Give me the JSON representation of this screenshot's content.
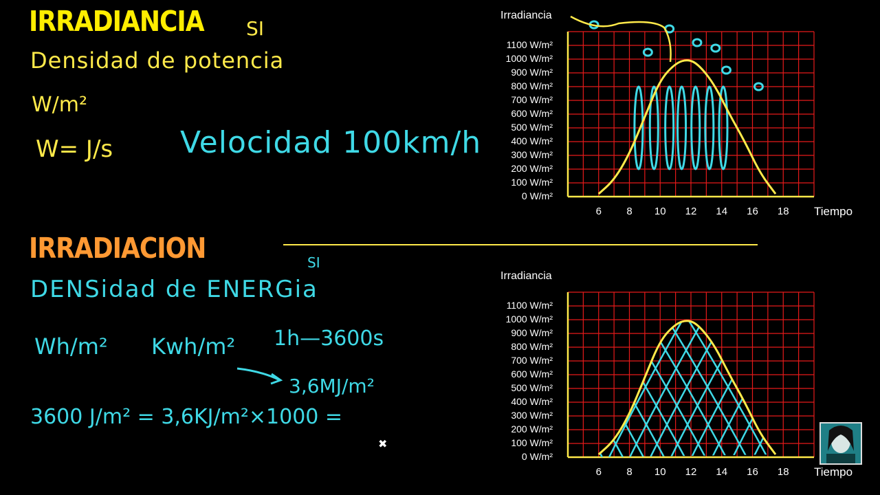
{
  "colors": {
    "background": "#000000",
    "heading_yellow": "#ffee00",
    "heading_orange": "#ff9933",
    "ink_yellow": "#ffea4a",
    "ink_cyan": "#3fd9e6",
    "grid_red": "#e61a1a"
  },
  "top": {
    "heading": "IRRADIANCIA",
    "si_note": "SI",
    "definition": "Densidad de potencia",
    "unit": "W/m²",
    "watt_def": "W= J/s",
    "velocity_note": "Velocidad 100km/h"
  },
  "bottom": {
    "heading": "IRRADIACION",
    "si_note": "SI",
    "definition": "DENSidad de ENERGia",
    "unit1": "Wh/m²",
    "unit2": "Kwh/m²",
    "arrow_result": "3,6MJ/m²",
    "hour_eq": "1h—3600s",
    "conversion": "3600 J/m² = 3,6KJ/m²×1000 ="
  },
  "chart_data": [
    {
      "type": "line",
      "title": "",
      "ylabel": "Irradiancia",
      "xlabel": "Tiempo",
      "y_ticks": [
        "0 W/m²",
        "100 W/m²",
        "200 W/m²",
        "300 W/m²",
        "400 W/m²",
        "500 W/m²",
        "600 W/m²",
        "700 W/m²",
        "800 W/m²",
        "900 W/m²",
        "1000 W/m²",
        "1100 W/m²"
      ],
      "x_ticks": [
        "6",
        "8",
        "10",
        "12",
        "14",
        "16",
        "18"
      ],
      "xlim": [
        4,
        20
      ],
      "ylim": [
        0,
        1200
      ],
      "grid": true,
      "series": [
        {
          "x": [
            6,
            7,
            8,
            9,
            10,
            11,
            11.8,
            12.5,
            13.5,
            14.5,
            15.5,
            16.5,
            17.5
          ],
          "values": [
            20,
            120,
            310,
            580,
            850,
            970,
            1000,
            960,
            820,
            600,
            400,
            170,
            20
          ]
        }
      ]
    },
    {
      "type": "area",
      "title": "",
      "ylabel": "Irradiancia",
      "xlabel": "Tiempo",
      "y_ticks": [
        "0 W/m²",
        "100 W/m²",
        "200 W/m²",
        "300 W/m²",
        "400 W/m²",
        "500 W/m²",
        "600 W/m²",
        "700 W/m²",
        "800 W/m²",
        "900 W/m²",
        "1000 W/m²",
        "1100 W/m²"
      ],
      "x_ticks": [
        "6",
        "8",
        "10",
        "12",
        "14",
        "16",
        "18"
      ],
      "xlim": [
        4,
        20
      ],
      "ylim": [
        0,
        1200
      ],
      "grid": true,
      "series": [
        {
          "x": [
            6,
            7,
            8,
            9,
            10,
            11,
            11.8,
            12.5,
            13.5,
            14.5,
            15.5,
            16.5,
            17.5
          ],
          "values": [
            20,
            120,
            310,
            580,
            850,
            970,
            1000,
            960,
            820,
            600,
            400,
            170,
            20
          ]
        }
      ]
    }
  ]
}
